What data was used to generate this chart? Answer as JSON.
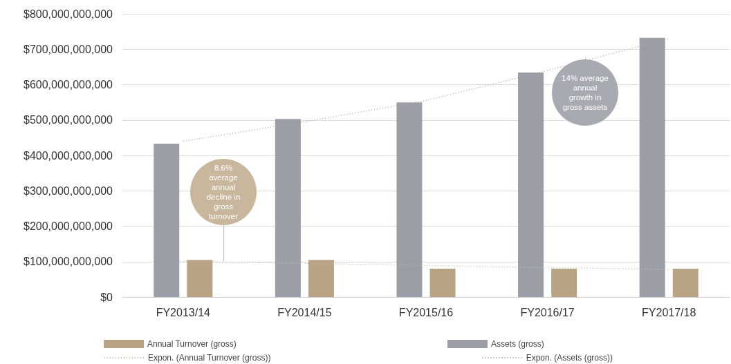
{
  "chart_data": {
    "type": "bar",
    "categories": [
      "FY2013/14",
      "FY2014/15",
      "FY2015/16",
      "FY2016/17",
      "FY2017/18"
    ],
    "series": [
      {
        "name": "Assets (gross)",
        "color": "#9b9ea6",
        "values": [
          433000000000,
          503000000000,
          550000000000,
          634000000000,
          732000000000
        ]
      },
      {
        "name": "Annual Turnover (gross)",
        "color": "#b8a385",
        "values": [
          105000000000,
          105000000000,
          80000000000,
          80000000000,
          80000000000
        ]
      },
      {
        "name": "Expon. (Assets (gross))",
        "type": "line",
        "color": "#a8aab0",
        "line_style": "dotted",
        "values": [
          440000000000,
          495000000000,
          555000000000,
          640000000000,
          730000000000
        ]
      },
      {
        "name": "Expon. (Annual Turnover (gross))",
        "type": "line",
        "color": "#c9bba6",
        "line_style": "dotted",
        "values": [
          101000000000,
          95000000000,
          89000000000,
          83000000000,
          78000000000
        ]
      }
    ],
    "ylim": [
      0,
      800000000000
    ],
    "yticks": [
      {
        "value": 0,
        "label": "$0"
      },
      {
        "value": 100000000000,
        "label": "$100,000,000,000"
      },
      {
        "value": 200000000000,
        "label": "$200,000,000,000"
      },
      {
        "value": 300000000000,
        "label": "$300,000,000,000"
      },
      {
        "value": 400000000000,
        "label": "$400,000,000,000"
      },
      {
        "value": 500000000000,
        "label": "$500,000,000,000"
      },
      {
        "value": 600000000000,
        "label": "$600,000,000,000"
      },
      {
        "value": 700000000000,
        "label": "$700,000,000,000"
      },
      {
        "value": 800000000000,
        "label": "$800,000,000,000"
      }
    ],
    "grid": "y",
    "legend": "bottom",
    "marker": "none",
    "annotations": [
      "8.6% average annual decline in gross turnover",
      "14% average annual growth in gross assets"
    ]
  }
}
